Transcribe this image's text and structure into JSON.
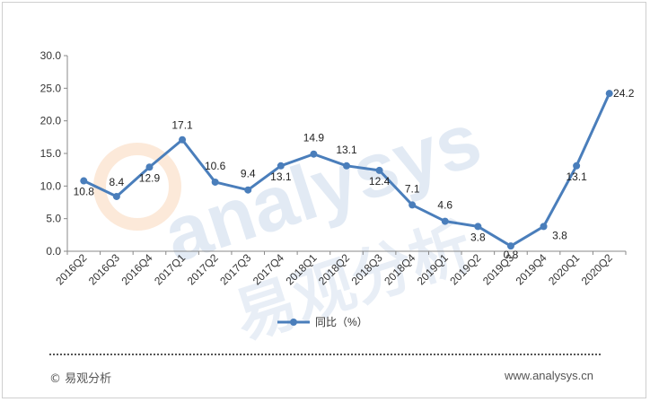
{
  "chart_data": {
    "type": "line",
    "categories": [
      "2016Q2",
      "2016Q3",
      "2016Q4",
      "2017Q1",
      "2017Q2",
      "2017Q3",
      "2017Q4",
      "2018Q1",
      "2018Q2",
      "2018Q3",
      "2018Q4",
      "2019Q1",
      "2019Q2",
      "2019Q3",
      "2019Q4",
      "2020Q1",
      "2020Q2"
    ],
    "series": [
      {
        "name": "同比（%）",
        "values": [
          10.8,
          8.4,
          12.9,
          17.1,
          10.6,
          9.4,
          13.1,
          14.9,
          13.1,
          12.4,
          7.1,
          4.6,
          3.8,
          0.8,
          3.8,
          13.1,
          24.2
        ],
        "color": "#4a7ebb"
      }
    ],
    "ylim": [
      0,
      30
    ],
    "yticks": [
      "0.0",
      "5.0",
      "10.0",
      "15.0",
      "20.0",
      "25.0",
      "30.0"
    ],
    "grid": false,
    "legend_position": "bottom-center",
    "title": "",
    "xlabel": "",
    "ylabel": ""
  },
  "watermark": {
    "text_en": "analysys",
    "text_cn": "易观分析"
  },
  "footer": {
    "left": "© 易观分析",
    "right": "www.analysys.cn"
  }
}
